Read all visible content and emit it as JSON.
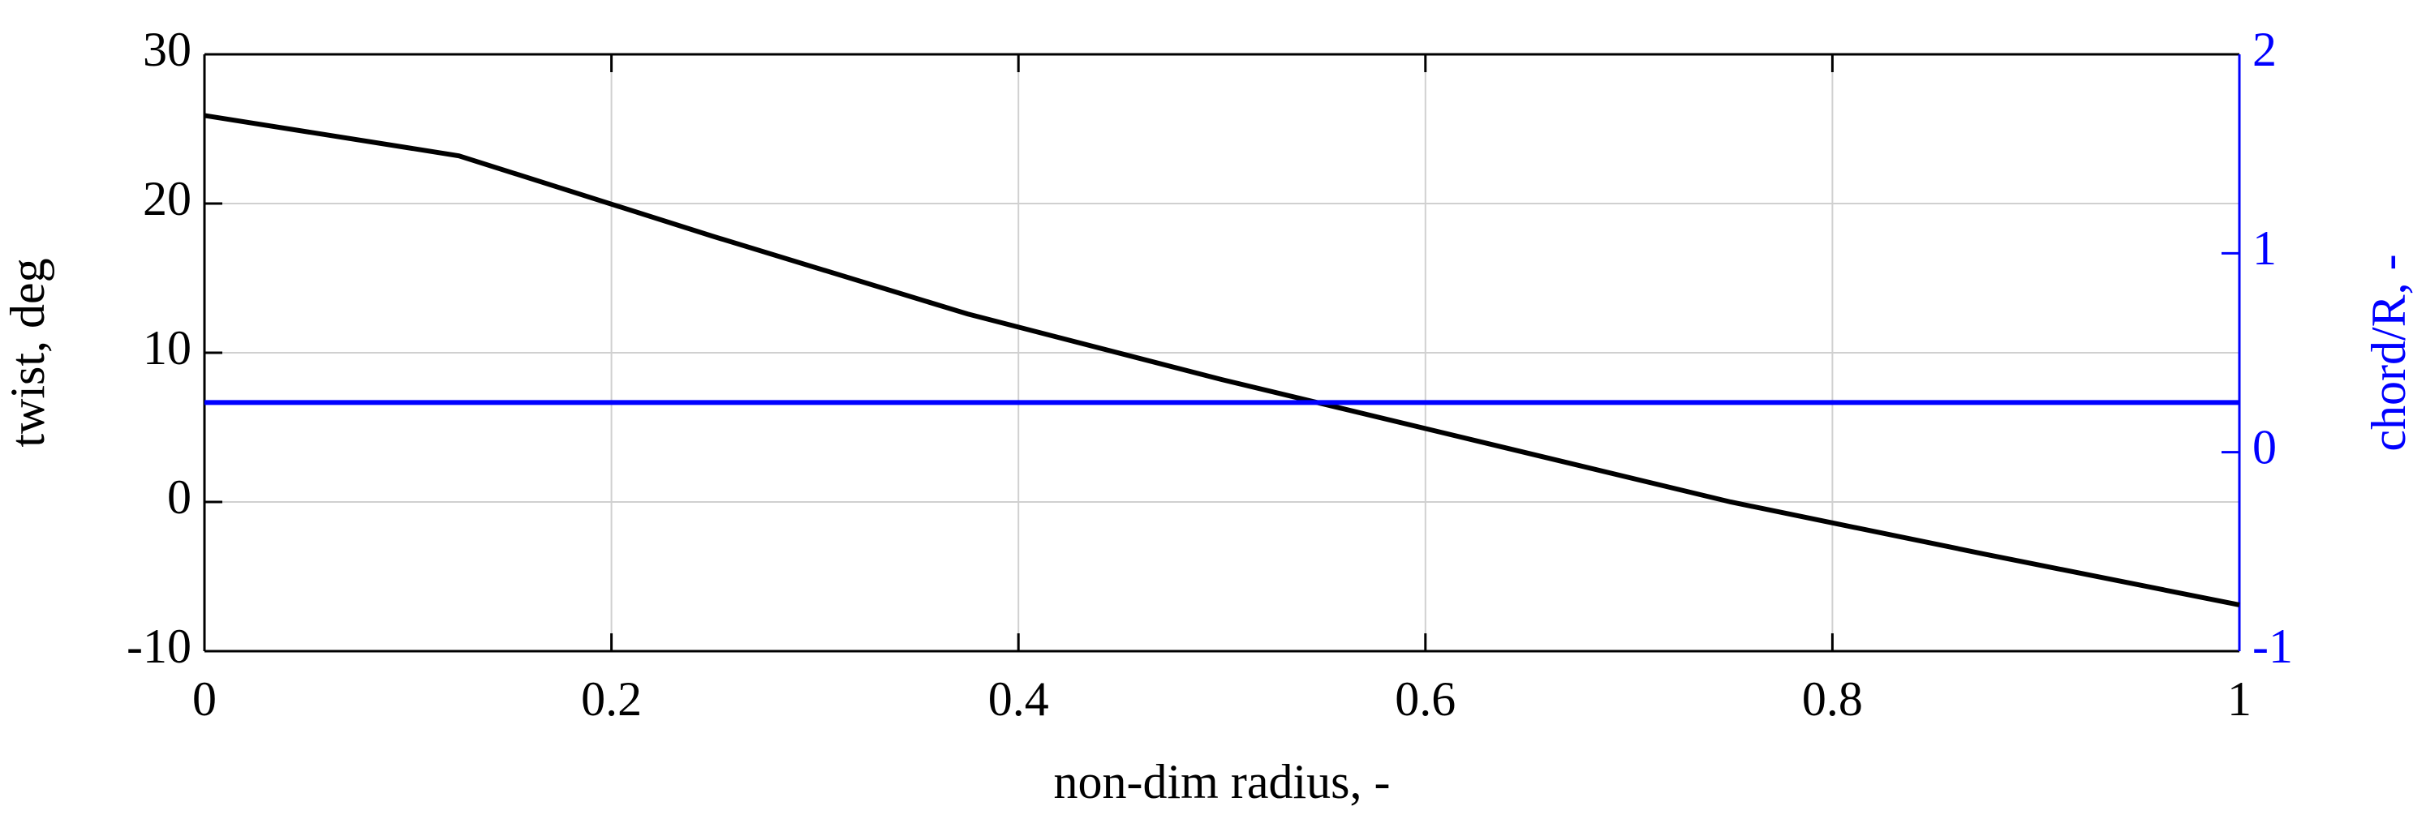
{
  "chart_data": {
    "type": "line",
    "x_label": "non-dim radius, -",
    "y_label": "twist, deg",
    "y2_label": "chord/R, -",
    "x": [
      0,
      0.125,
      0.25,
      0.375,
      0.5,
      0.625,
      0.75,
      0.875,
      1
    ],
    "series": [
      {
        "color": "#000000",
        "values": [
          25.9,
          23.2,
          17.8,
          12.6,
          8.2,
          4.1,
          0,
          -3.5,
          -6.9
        ]
      },
      {
        "color": "#0000ff",
        "axis": "y2",
        "values": [
          0.25,
          0.25,
          0.25,
          0.25,
          0.25,
          0.25,
          0.25,
          0.25,
          0.25
        ]
      }
    ],
    "xlim": [
      0,
      1
    ],
    "xticks": [
      0,
      0.2,
      0.4,
      0.6,
      0.8,
      1
    ],
    "ylim": [
      -10,
      30
    ],
    "yticks": [
      -10,
      0,
      10,
      20,
      30
    ],
    "y2lim": [
      -1,
      2
    ],
    "y2ticks": [
      -1,
      0,
      1,
      2
    ],
    "y2_color": "#0000ff",
    "grid": true
  }
}
